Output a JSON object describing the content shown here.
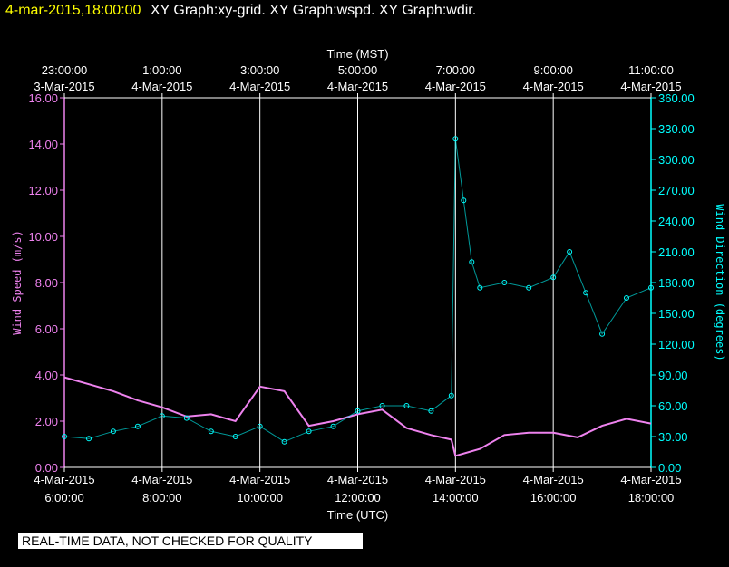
{
  "header": {
    "timestamp": "4-mar-2015,18:00:00",
    "graphs": "XY Graph:xy-grid.  XY Graph:wspd.  XY Graph:wdir."
  },
  "footer_note": "REAL-TIME DATA, NOT CHECKED FOR QUALITY",
  "colors": {
    "background": "#000000",
    "axes": "#ffffff",
    "wind_speed": "#ee82ee",
    "wind_direction": "#00ffff",
    "header_timestamp": "#ffff00"
  },
  "chart_data": {
    "type": "scatter",
    "grid": "vertical",
    "top_axis": {
      "title": "Time (MST)",
      "ticks": [
        {
          "time": "23:00:00",
          "date": "3-Mar-2015"
        },
        {
          "time": "1:00:00",
          "date": "4-Mar-2015"
        },
        {
          "time": "3:00:00",
          "date": "4-Mar-2015"
        },
        {
          "time": "5:00:00",
          "date": "4-Mar-2015"
        },
        {
          "time": "7:00:00",
          "date": "4-Mar-2015"
        },
        {
          "time": "9:00:00",
          "date": "4-Mar-2015"
        },
        {
          "time": "11:00:00",
          "date": "4-Mar-2015"
        }
      ]
    },
    "bottom_axis": {
      "title": "Time (UTC)",
      "xlim": [
        "2015-03-04T06:00",
        "2015-03-04T18:00"
      ],
      "ticks": [
        {
          "date": "4-Mar-2015",
          "time": "6:00:00"
        },
        {
          "date": "4-Mar-2015",
          "time": "8:00:00"
        },
        {
          "date": "4-Mar-2015",
          "time": "10:00:00"
        },
        {
          "date": "4-Mar-2015",
          "time": "12:00:00"
        },
        {
          "date": "4-Mar-2015",
          "time": "14:00:00"
        },
        {
          "date": "4-Mar-2015",
          "time": "16:00:00"
        },
        {
          "date": "4-Mar-2015",
          "time": "18:00:00"
        }
      ]
    },
    "left_axis": {
      "label": "Wind Speed (m/s)",
      "ylim": [
        0,
        16
      ],
      "ticks": [
        "0.00",
        "2.00",
        "4.00",
        "6.00",
        "8.00",
        "10.00",
        "12.00",
        "14.00",
        "16.00"
      ]
    },
    "right_axis": {
      "label": "Wind Direction (degrees)",
      "ylim": [
        0,
        360
      ],
      "ticks": [
        "0.00",
        "30.00",
        "60.00",
        "90.00",
        "120.00",
        "150.00",
        "180.00",
        "210.00",
        "240.00",
        "270.00",
        "300.00",
        "330.00",
        "360.00"
      ]
    },
    "series": [
      {
        "name": "Wind Speed (m/s)",
        "axis": "left",
        "style": "line",
        "color": "#ee82ee",
        "points": [
          [
            "06:00",
            3.9
          ],
          [
            "06:30",
            3.6
          ],
          [
            "07:00",
            3.3
          ],
          [
            "07:30",
            2.9
          ],
          [
            "08:00",
            2.6
          ],
          [
            "08:30",
            2.2
          ],
          [
            "09:00",
            2.3
          ],
          [
            "09:30",
            2.0
          ],
          [
            "10:00",
            3.5
          ],
          [
            "10:30",
            3.3
          ],
          [
            "11:00",
            1.8
          ],
          [
            "11:30",
            2.0
          ],
          [
            "12:00",
            2.3
          ],
          [
            "12:30",
            2.5
          ],
          [
            "13:00",
            1.7
          ],
          [
            "13:30",
            1.4
          ],
          [
            "13:55",
            1.2
          ],
          [
            "14:00",
            0.5
          ],
          [
            "14:30",
            0.8
          ],
          [
            "15:00",
            1.4
          ],
          [
            "15:30",
            1.5
          ],
          [
            "16:00",
            1.5
          ],
          [
            "16:30",
            1.3
          ],
          [
            "17:00",
            1.8
          ],
          [
            "17:30",
            2.1
          ],
          [
            "18:00",
            1.9
          ]
        ]
      },
      {
        "name": "Wind Direction (degrees)",
        "axis": "right",
        "style": "markers",
        "color": "#00ffff",
        "points": [
          [
            "06:00",
            30
          ],
          [
            "06:30",
            28
          ],
          [
            "07:00",
            35
          ],
          [
            "07:30",
            40
          ],
          [
            "08:00",
            50
          ],
          [
            "08:30",
            48
          ],
          [
            "09:00",
            35
          ],
          [
            "09:30",
            30
          ],
          [
            "10:00",
            40
          ],
          [
            "10:30",
            25
          ],
          [
            "11:00",
            35
          ],
          [
            "11:30",
            40
          ],
          [
            "12:00",
            55
          ],
          [
            "12:30",
            60
          ],
          [
            "13:00",
            60
          ],
          [
            "13:30",
            55
          ],
          [
            "13:55",
            70
          ],
          [
            "14:00",
            320
          ],
          [
            "14:10",
            260
          ],
          [
            "14:20",
            200
          ],
          [
            "14:30",
            175
          ],
          [
            "15:00",
            180
          ],
          [
            "15:30",
            175
          ],
          [
            "16:00",
            185
          ],
          [
            "16:20",
            210
          ],
          [
            "16:40",
            170
          ],
          [
            "17:00",
            130
          ],
          [
            "17:30",
            165
          ],
          [
            "18:00",
            175
          ]
        ]
      }
    ]
  }
}
